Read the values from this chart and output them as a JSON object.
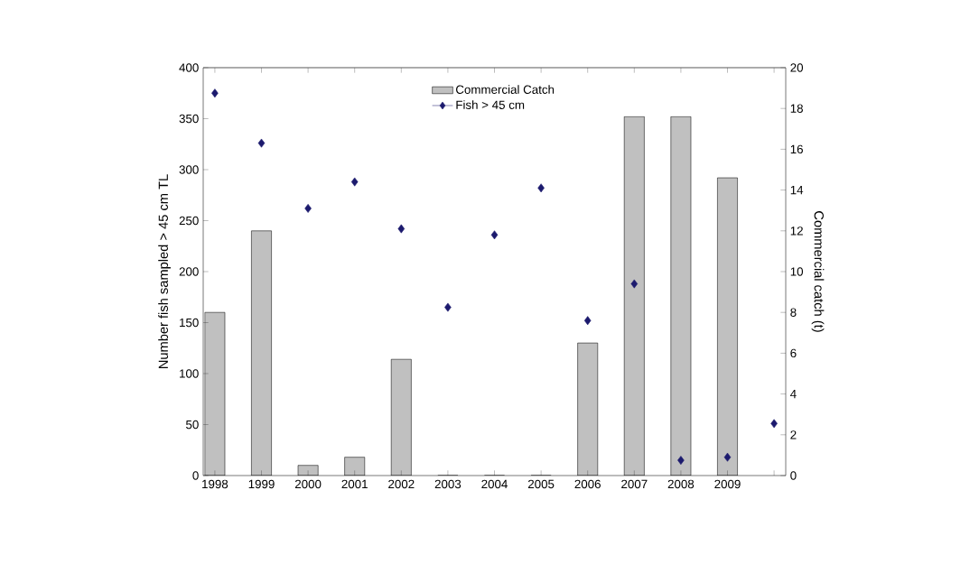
{
  "chart_data": {
    "type": "bar",
    "categories": [
      "1998",
      "1999",
      "2000",
      "2001",
      "2002",
      "2003",
      "2004",
      "2005",
      "2006",
      "2007",
      "2008",
      "2009",
      null
    ],
    "series": [
      {
        "name": "Commercial Catch",
        "axis": "y2",
        "color": "#c0c0c0",
        "values": [
          8.0,
          12.0,
          0.5,
          0.9,
          5.7,
          0,
          0,
          0,
          6.5,
          17.6,
          17.6,
          14.6,
          null
        ]
      },
      {
        "name": "Fish > 45 cm",
        "type": "scatter",
        "marker": "diamond",
        "color": "#1c1a6e",
        "values": [
          375,
          326,
          262,
          288,
          242,
          165,
          236,
          282,
          152,
          188,
          15,
          18,
          51
        ]
      }
    ],
    "ylabel": "Number fish sampled > 45 cm TL",
    "y2label": "Commercial catch (t)",
    "ylim": [
      0,
      400
    ],
    "yticks": [
      0,
      50,
      100,
      150,
      200,
      250,
      300,
      350,
      400
    ],
    "y2lim": [
      0,
      20
    ],
    "y2ticks": [
      0,
      2,
      4,
      6,
      8,
      10,
      12,
      14,
      16,
      18,
      20
    ],
    "legend": "top",
    "grid": false
  }
}
